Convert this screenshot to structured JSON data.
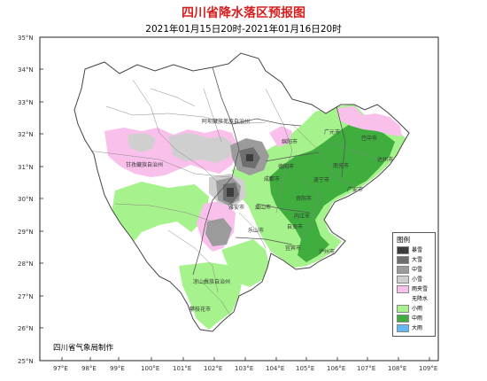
{
  "title": "四川省降水落区预报图",
  "subtitle": "2021年01月15日20时-2021年01月16日20时",
  "credit": "四川省气象局制作",
  "axes": {
    "lat_labels": [
      "35°N",
      "34°N",
      "33°N",
      "32°N",
      "31°N",
      "30°N",
      "29°N",
      "28°N",
      "27°N",
      "26°N",
      "25°N"
    ],
    "lon_labels": [
      "97°E",
      "98°E",
      "99°E",
      "100°E",
      "101°E",
      "102°E",
      "103°E",
      "104°E",
      "105°E",
      "106°E",
      "107°E",
      "108°E",
      "109°E"
    ]
  },
  "legend": {
    "title": "图例",
    "items": [
      {
        "label": "暴雪",
        "color": "#3c3c3c"
      },
      {
        "label": "大雪",
        "color": "#6e6e6e"
      },
      {
        "label": "中雪",
        "color": "#9b9b9b"
      },
      {
        "label": "小雪",
        "color": "#cfcfcf"
      },
      {
        "label": "雨夹雪",
        "color": "#f9c0ec"
      },
      {
        "label": "无降水",
        "color": "#ffffff"
      },
      {
        "label": "小雨",
        "color": "#a6f28c"
      },
      {
        "label": "中雨",
        "color": "#3fae3f"
      },
      {
        "label": "大雨",
        "color": "#62b8f2"
      }
    ]
  },
  "regions": [
    {
      "name": "阿坝藏族羌族自治州"
    },
    {
      "name": "甘孜藏族自治州"
    },
    {
      "name": "凉山彝族自治州"
    },
    {
      "name": "攀枝花市"
    },
    {
      "name": "广元市"
    },
    {
      "name": "巴中市"
    },
    {
      "name": "达州市"
    },
    {
      "name": "绵阳市"
    },
    {
      "name": "南充市"
    },
    {
      "name": "德阳市"
    },
    {
      "name": "遂宁市"
    },
    {
      "name": "广安市"
    },
    {
      "name": "成都市"
    },
    {
      "name": "资阳市"
    },
    {
      "name": "眉山市"
    },
    {
      "name": "雅安市"
    },
    {
      "name": "乐山市"
    },
    {
      "name": "内江市"
    },
    {
      "name": "自贡市"
    },
    {
      "name": "宜宾市"
    },
    {
      "name": "泸州市"
    }
  ]
}
